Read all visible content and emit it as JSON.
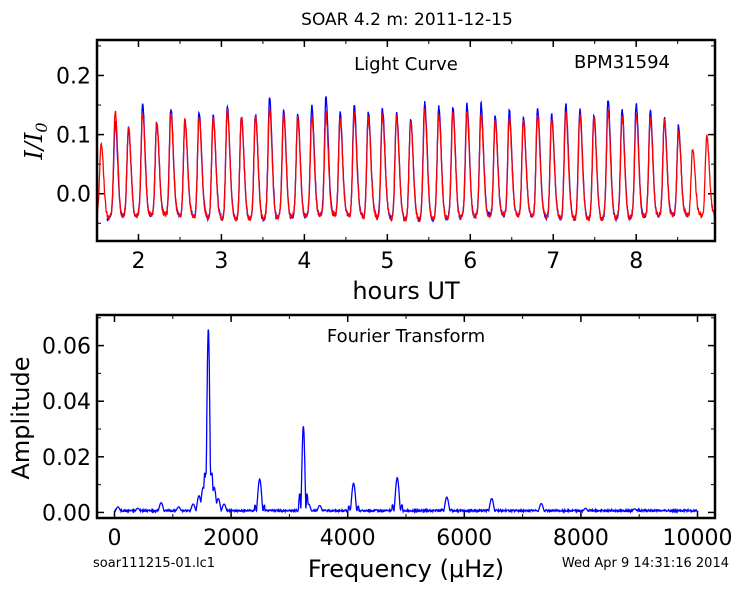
{
  "figure": {
    "title": "SOAR 4.2 m:  2011-12-15",
    "footer_left": "soar111215-01.lc1",
    "footer_right": "Wed Apr  9 14:31:16 2014"
  },
  "chart_data": [
    {
      "type": "line",
      "annotations": [
        "Light Curve",
        "BPM31594"
      ],
      "xlabel": "hours UT",
      "ylabel": "I/I0",
      "xlim": [
        1.5,
        8.95
      ],
      "ylim": [
        -0.08,
        0.26
      ],
      "x_ticks": [
        2,
        3,
        4,
        5,
        6,
        7,
        8
      ],
      "x_tick_labels": [
        "2",
        "3",
        "4",
        "5",
        "6",
        "7",
        "8"
      ],
      "y_ticks": [
        0.0,
        0.1,
        0.2
      ],
      "y_tick_labels": [
        "0.0",
        "0.1",
        "0.2"
      ],
      "grid": false,
      "pulse_period_hours": 0.1695,
      "baseline": -0.04,
      "series": [
        {
          "color": "#0000ff",
          "x_range": [
            1.62,
            8.62
          ],
          "peak_x": [
            1.72,
            1.88,
            2.05,
            2.22,
            2.39,
            2.56,
            2.73,
            2.9,
            3.07,
            3.24,
            3.41,
            3.58,
            3.75,
            3.92,
            4.09,
            4.26,
            4.43,
            4.6,
            4.77,
            4.94,
            5.11,
            5.28,
            5.45,
            5.62,
            5.79,
            5.96,
            6.13,
            6.3,
            6.47,
            6.64,
            6.81,
            6.98,
            7.15,
            7.32,
            7.49,
            7.66,
            7.83,
            8.0,
            8.17,
            8.34,
            8.51
          ],
          "peak_y": [
            0.12,
            0.11,
            0.152,
            0.125,
            0.148,
            0.128,
            0.14,
            0.133,
            0.146,
            0.128,
            0.13,
            0.157,
            0.14,
            0.132,
            0.15,
            0.165,
            0.14,
            0.152,
            0.142,
            0.145,
            0.135,
            0.122,
            0.15,
            0.142,
            0.142,
            0.15,
            0.152,
            0.133,
            0.145,
            0.133,
            0.148,
            0.135,
            0.15,
            0.14,
            0.13,
            0.153,
            0.138,
            0.15,
            0.142,
            0.13,
            0.118
          ]
        },
        {
          "color": "#ff0000",
          "x_range": [
            1.5,
            8.95
          ],
          "peak_x": [
            1.55,
            1.72,
            1.88,
            2.05,
            2.22,
            2.39,
            2.56,
            2.73,
            2.9,
            3.07,
            3.24,
            3.41,
            3.58,
            3.75,
            3.92,
            4.09,
            4.26,
            4.43,
            4.6,
            4.77,
            4.94,
            5.11,
            5.28,
            5.45,
            5.62,
            5.79,
            5.96,
            6.13,
            6.3,
            6.47,
            6.64,
            6.81,
            6.98,
            7.15,
            7.32,
            7.49,
            7.66,
            7.83,
            8.0,
            8.17,
            8.34,
            8.51,
            8.68,
            8.85
          ],
          "peak_y": [
            0.082,
            0.138,
            0.115,
            0.14,
            0.125,
            0.14,
            0.128,
            0.132,
            0.128,
            0.138,
            0.128,
            0.128,
            0.14,
            0.13,
            0.128,
            0.132,
            0.138,
            0.13,
            0.14,
            0.132,
            0.135,
            0.128,
            0.12,
            0.138,
            0.13,
            0.135,
            0.138,
            0.138,
            0.128,
            0.132,
            0.128,
            0.135,
            0.128,
            0.135,
            0.13,
            0.125,
            0.135,
            0.128,
            0.135,
            0.13,
            0.128,
            0.108,
            0.08,
            0.1
          ]
        }
      ]
    },
    {
      "type": "line",
      "annotations": [
        "Fourier Transform"
      ],
      "xlabel": "Frequency (μHz)",
      "ylabel": "Amplitude",
      "xlim": [
        -300,
        10300
      ],
      "ylim": [
        -0.002,
        0.071
      ],
      "x_ticks": [
        0,
        2000,
        4000,
        6000,
        8000,
        10000
      ],
      "x_tick_labels": [
        "0",
        "2000",
        "4000",
        "6000",
        "8000",
        "10000"
      ],
      "y_ticks": [
        0.0,
        0.02,
        0.04,
        0.06
      ],
      "y_tick_labels": [
        "0.00",
        "0.02",
        "0.04",
        "0.06"
      ],
      "grid": false,
      "series": [
        {
          "color": "#0000ff",
          "x_range": [
            0,
            10000
          ],
          "noise_level": 0.0008,
          "peaks": [
            {
              "x": 60,
              "y": 0.002
            },
            {
              "x": 400,
              "y": 0.0015
            },
            {
              "x": 800,
              "y": 0.0035
            },
            {
              "x": 1100,
              "y": 0.002
            },
            {
              "x": 1350,
              "y": 0.003
            },
            {
              "x": 1450,
              "y": 0.006
            },
            {
              "x": 1520,
              "y": 0.009
            },
            {
              "x": 1570,
              "y": 0.014
            },
            {
              "x": 1610,
              "y": 0.066
            },
            {
              "x": 1660,
              "y": 0.014
            },
            {
              "x": 1710,
              "y": 0.009
            },
            {
              "x": 1780,
              "y": 0.005
            },
            {
              "x": 1880,
              "y": 0.003
            },
            {
              "x": 2490,
              "y": 0.012
            },
            {
              "x": 3240,
              "y": 0.031
            },
            {
              "x": 3330,
              "y": 0.003
            },
            {
              "x": 3520,
              "y": 0.0025
            },
            {
              "x": 4100,
              "y": 0.0105
            },
            {
              "x": 4850,
              "y": 0.0125
            },
            {
              "x": 5700,
              "y": 0.0055
            },
            {
              "x": 6470,
              "y": 0.005
            },
            {
              "x": 7320,
              "y": 0.0032
            },
            {
              "x": 8080,
              "y": 0.0015
            },
            {
              "x": 8920,
              "y": 0.0013
            }
          ]
        }
      ]
    }
  ]
}
